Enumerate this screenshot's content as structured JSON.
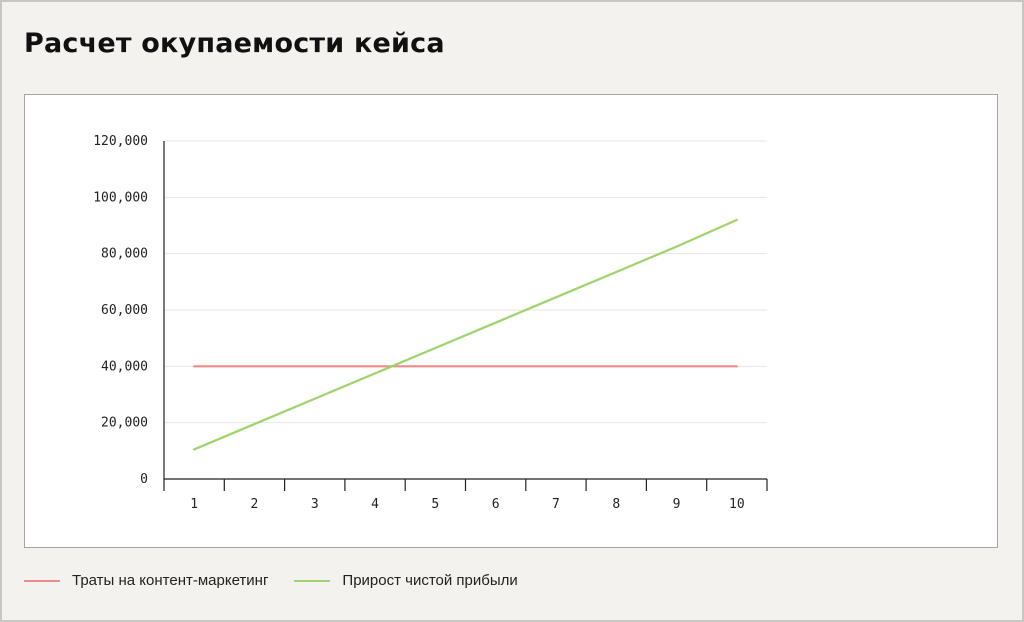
{
  "title": "Расчет окупаемости кейса",
  "legend": {
    "items": [
      {
        "label": "Траты на контент-маркетинг",
        "color": "#f08a8a"
      },
      {
        "label": "Прирост чистой прибыли",
        "color": "#9fd36b"
      }
    ]
  },
  "chart_data": {
    "type": "line",
    "title": "",
    "xlabel": "",
    "ylabel": "",
    "categories": [
      "1",
      "2",
      "3",
      "4",
      "5",
      "6",
      "7",
      "8",
      "9",
      "10"
    ],
    "ylim": [
      0,
      120000
    ],
    "yticks": [
      0,
      20000,
      40000,
      60000,
      80000,
      100000,
      120000
    ],
    "ytick_labels": [
      "0",
      "20,000",
      "40,000",
      "60,000",
      "80,000",
      "100,000",
      "120,000"
    ],
    "grid": true,
    "legend_position": "bottom-left",
    "series": [
      {
        "name": "Траты на контент-маркетинг",
        "color": "#f08a8a",
        "values": [
          40000,
          40000,
          40000,
          40000,
          40000,
          40000,
          40000,
          40000,
          40000,
          40000
        ]
      },
      {
        "name": "Прирост чистой прибыли",
        "color": "#9fd36b",
        "values": [
          10500,
          19500,
          28500,
          37500,
          46500,
          55500,
          64500,
          73500,
          82500,
          92000
        ]
      }
    ]
  }
}
